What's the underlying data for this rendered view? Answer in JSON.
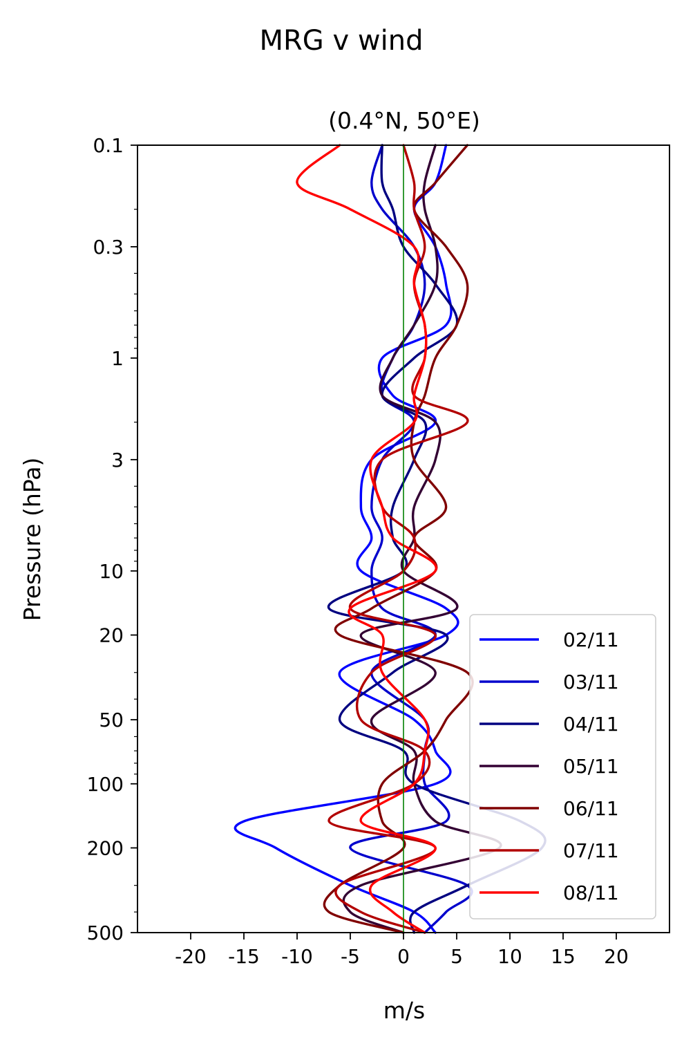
{
  "chart_data": {
    "type": "line",
    "suptitle": "MRG v wind",
    "title": "(0.4°N, 50°E)",
    "xlabel": "m/s",
    "ylabel": "Pressure (hPa)",
    "xlim": [
      -25,
      25
    ],
    "ylim": [
      500,
      0.1
    ],
    "yscale": "log",
    "xticks": [
      -20,
      -15,
      -10,
      -5,
      0,
      5,
      10,
      15,
      20
    ],
    "xtick_labels": [
      "-20",
      "-15",
      "-10",
      "-5",
      "0",
      "5",
      "10",
      "15",
      "20"
    ],
    "yticks": [
      0.1,
      0.3,
      1,
      3,
      10,
      20,
      50,
      100,
      200,
      500
    ],
    "ytick_labels": [
      "0.1",
      "0.3",
      "1",
      "3",
      "10",
      "20",
      "50",
      "100",
      "200",
      "500"
    ],
    "zero_line_color": "#008000",
    "legend_position": "lower-right",
    "pressure_levels": [
      0.1,
      0.15,
      0.2,
      0.3,
      0.45,
      0.7,
      1,
      1.5,
      2,
      3,
      5,
      7,
      10,
      15,
      20,
      30,
      50,
      70,
      100,
      150,
      200,
      300,
      400,
      500
    ],
    "series": [
      {
        "name": "02/11",
        "color": "#0000ff",
        "values": [
          4,
          3,
          1,
          3,
          4,
          4,
          -2,
          -1,
          3,
          -3,
          -4,
          -3,
          -4,
          4,
          4,
          -6,
          1,
          3,
          3,
          -15,
          -12,
          -5,
          1,
          3
        ]
      },
      {
        "name": "03/11",
        "color": "#0000cc",
        "values": [
          -2,
          -3,
          -2,
          1,
          2,
          1,
          -1,
          -2,
          1,
          -2,
          -3,
          -2,
          -3,
          -2,
          3,
          -3,
          2,
          2,
          2,
          4,
          -5,
          6,
          4,
          2
        ]
      },
      {
        "name": "04/11",
        "color": "#000080",
        "values": [
          -2,
          -2,
          -1,
          0,
          3,
          5,
          1,
          -2,
          2,
          1,
          -1,
          -1,
          0,
          -7,
          4,
          -1,
          -6,
          0,
          1,
          11,
          13,
          6,
          1,
          1
        ]
      },
      {
        "name": "05/11",
        "color": "#330033",
        "values": [
          3,
          2,
          2,
          3,
          3,
          1,
          -1,
          -2,
          3,
          3,
          1,
          1,
          0,
          5,
          -4,
          3,
          -3,
          1,
          1,
          3,
          9,
          -4,
          -5,
          0
        ]
      },
      {
        "name": "06/11",
        "color": "#800000",
        "values": [
          6,
          3,
          1,
          4,
          6,
          5,
          3,
          2,
          1,
          1,
          4,
          1,
          3,
          -3,
          -6,
          6,
          4,
          2,
          -2,
          -2,
          0,
          -6,
          -7,
          0
        ]
      },
      {
        "name": "07/11",
        "color": "#b20000",
        "values": [
          0,
          1,
          1,
          2,
          1,
          2,
          2,
          1,
          6,
          -2,
          -2,
          1,
          0,
          -5,
          3,
          -3,
          -4,
          2,
          1,
          -7,
          3,
          -6,
          -4,
          2
        ]
      },
      {
        "name": "08/11",
        "color": "#ff0000",
        "values": [
          -6,
          -10,
          -5,
          1,
          1,
          2,
          2,
          1,
          1,
          -3,
          -2,
          -1,
          3,
          -5,
          -2,
          -2,
          2,
          2,
          1,
          -4,
          3,
          -3,
          -1,
          2
        ]
      }
    ]
  }
}
